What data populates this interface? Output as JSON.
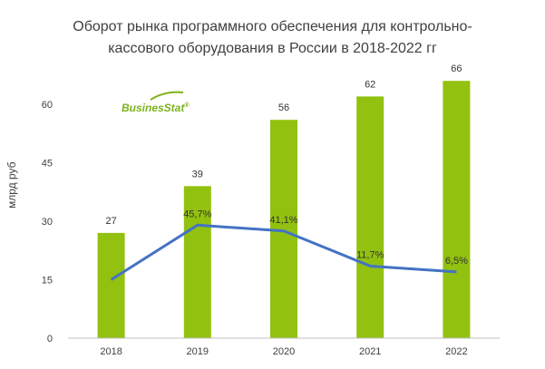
{
  "title_lines": [
    "Оборот рынка программного обеспечения для контрольно-",
    "кассового оборудования в России в 2018-2022 гг"
  ],
  "logo": {
    "name": "BusinesStat",
    "mark": "®"
  },
  "colors": {
    "bars": "#92c110",
    "line": "#4472c4",
    "text": "#404040",
    "axis": "#bfbfbf"
  },
  "chart_data": {
    "type": "bar",
    "categories": [
      "2018",
      "2019",
      "2020",
      "2021",
      "2022"
    ],
    "values": [
      27,
      39,
      56,
      62,
      66
    ],
    "ylabel": "млрд руб",
    "ylim": [
      0,
      60
    ],
    "yticks": [
      0,
      15,
      30,
      45,
      60
    ],
    "grid": false,
    "line_overlay": {
      "values": [
        15,
        29,
        27.5,
        18.5,
        17
      ],
      "labels": [
        "",
        "45,7%",
        "41,1%",
        "11,7%",
        "6,5%"
      ]
    }
  }
}
